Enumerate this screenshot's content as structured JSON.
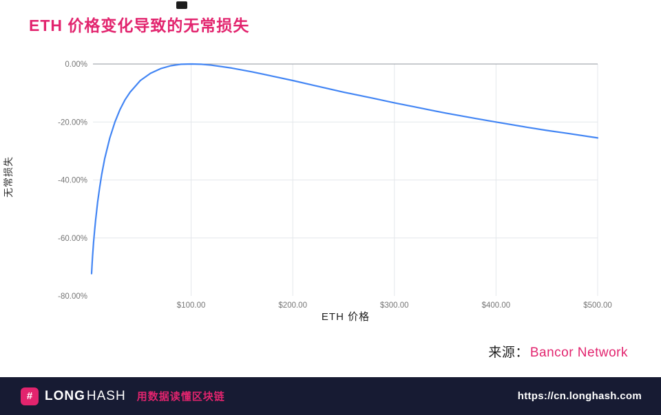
{
  "page": {
    "title": "ETH 价格变化导致的无常损失",
    "source_label": "来源：",
    "source_name": "Bancor Network"
  },
  "chart_data": {
    "type": "line",
    "title": "ETH 价格变化导致的无常损失",
    "xlabel": "ETH 价格",
    "ylabel": "无常损失",
    "xlim": [
      0,
      500
    ],
    "ylim": [
      -80,
      0
    ],
    "grid": true,
    "legend": "none",
    "line_color": "#4285f4",
    "x_ticks": [
      {
        "value": 100,
        "label": "$100.00"
      },
      {
        "value": 200,
        "label": "$200.00"
      },
      {
        "value": 300,
        "label": "$300.00"
      },
      {
        "value": 400,
        "label": "$400.00"
      },
      {
        "value": 500,
        "label": "$500.00"
      }
    ],
    "y_ticks": [
      {
        "value": 0,
        "label": "0.00%"
      },
      {
        "value": -20,
        "label": "-20.00%"
      },
      {
        "value": -40,
        "label": "-40.00%"
      },
      {
        "value": -60,
        "label": "-60.00%"
      },
      {
        "value": -80,
        "label": "-80.00%"
      }
    ],
    "series": [
      {
        "name": "无常损失",
        "x": [
          2,
          2.5,
          3,
          4,
          5,
          6,
          8,
          10,
          12,
          15,
          20,
          25,
          30,
          35,
          40,
          50,
          60,
          70,
          80,
          90,
          100,
          110,
          120,
          140,
          160,
          180,
          200,
          220,
          250,
          280,
          300,
          320,
          350,
          380,
          400,
          430,
          450,
          470,
          500
        ],
        "y": [
          -72.3,
          -69.2,
          -66.4,
          -61.5,
          -57.4,
          -53.8,
          -47.6,
          -42.5,
          -38.1,
          -32.6,
          -25.5,
          -20.0,
          -15.7,
          -12.3,
          -9.7,
          -5.7,
          -3.2,
          -1.6,
          -0.6,
          -0.1,
          0.0,
          -0.1,
          -0.4,
          -1.4,
          -2.7,
          -4.2,
          -5.7,
          -7.3,
          -9.7,
          -11.9,
          -13.4,
          -14.8,
          -16.9,
          -18.8,
          -20.0,
          -21.8,
          -22.9,
          -23.9,
          -25.5
        ]
      }
    ]
  },
  "footer": {
    "hash_symbol": "#",
    "brand_long": "LONG",
    "brand_hash": "HASH",
    "tagline": "用数据读懂区块链",
    "url": "https://cn.longhash.com"
  },
  "colors": {
    "accent_pink": "#e2246e",
    "line_blue": "#4285f4",
    "footer_bg": "#171b33",
    "grid": "#e4e7eb",
    "axis_line": "#8f959e",
    "tick_text": "#757575"
  }
}
